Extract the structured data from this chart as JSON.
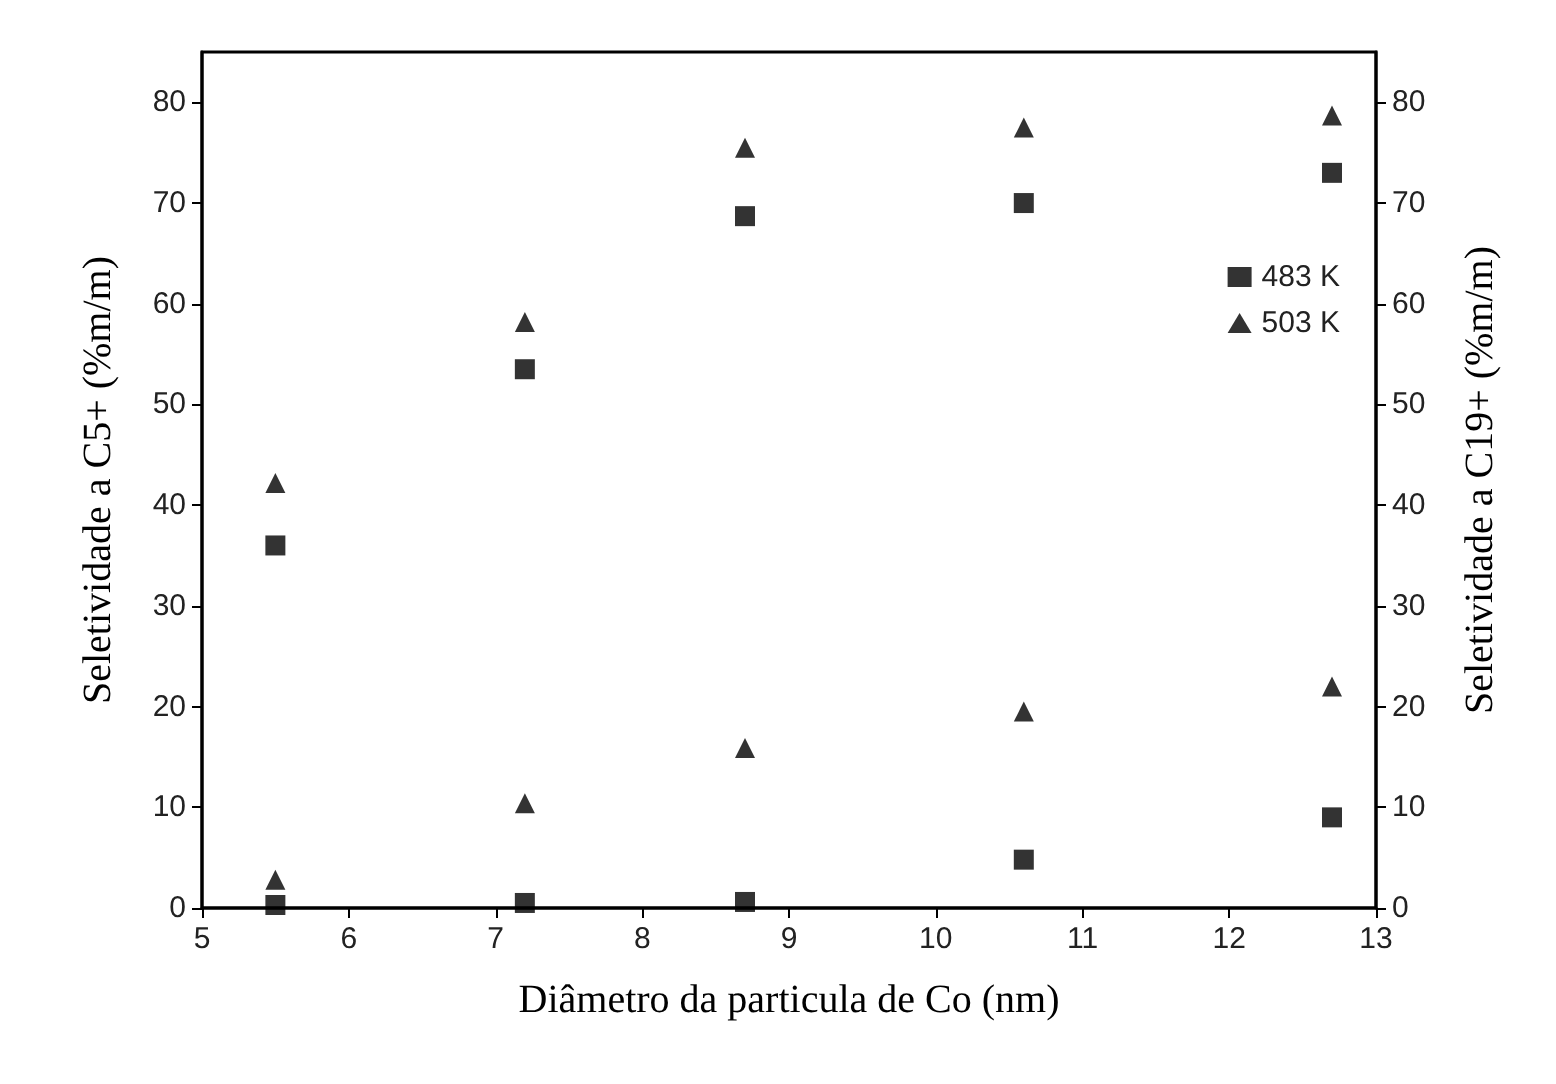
{
  "chart_data": {
    "type": "scatter",
    "xlabel": "Diâmetro da particula de Co (nm)",
    "ylabel": "Seletividade a C5+ (%m/m)",
    "y2label": "Seletividade a C19+ (%m/m)",
    "x": [
      5.5,
      7.2,
      8.7,
      10.6,
      12.7
    ],
    "xlim": [
      5,
      13
    ],
    "xticks": [
      5,
      6,
      7,
      8,
      9,
      10,
      11,
      12,
      13
    ],
    "ylim": [
      0,
      85
    ],
    "yticks": [
      0,
      10,
      20,
      30,
      40,
      50,
      60,
      70,
      80
    ],
    "y2lim": [
      0,
      85
    ],
    "y2ticks": [
      0,
      10,
      20,
      30,
      40,
      50,
      60,
      70,
      80
    ],
    "legend": "right",
    "grid": false,
    "series": [
      {
        "name": "483 K",
        "color": "#000000",
        "marker": "square",
        "values": [
          36,
          53.5,
          68.7,
          70,
          73
        ]
      },
      {
        "name": "503 K",
        "color": "#000000",
        "marker": "triangle",
        "values": [
          42.2,
          58.2,
          75.5,
          77.5,
          78.7
        ]
      },
      {
        "color": "#000000",
        "marker": "square",
        "values": [
          0.3,
          0.5,
          0.6,
          4.8,
          9
        ]
      },
      {
        "color": "#000000",
        "marker": "triangle",
        "values": [
          2.8,
          10.4,
          15.9,
          19.5,
          22
        ]
      }
    ]
  }
}
